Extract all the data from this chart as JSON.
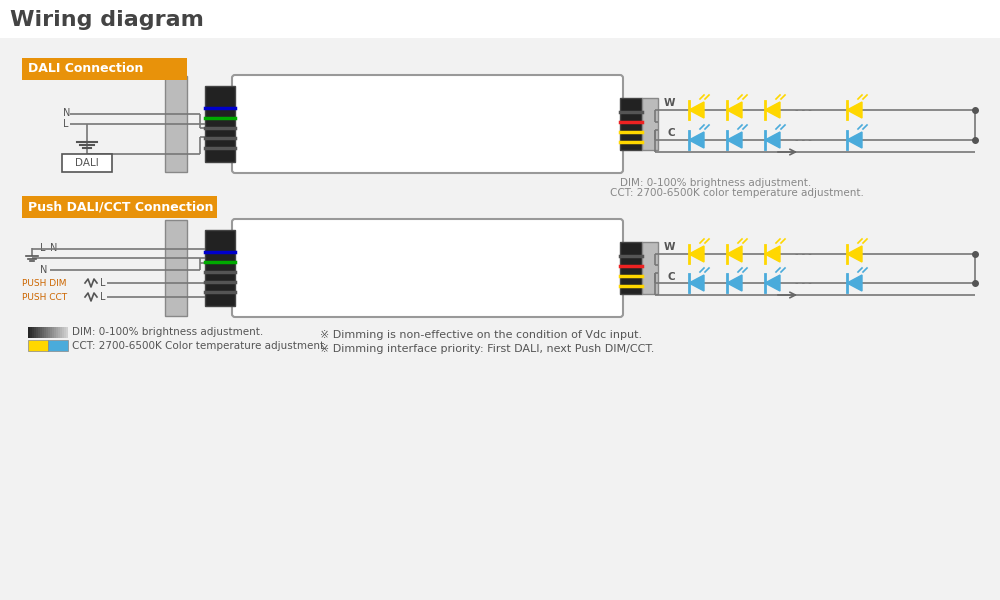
{
  "title": "Wiring diagram",
  "bg_color": "#f0f0f0",
  "white_bg": "#ffffff",
  "orange_label_color": "#E8920A",
  "yellow_led": "#FFD700",
  "blue_led": "#4AABDB",
  "dark_gray": "#555555",
  "light_gray": "#aaaaaa",
  "section1_label": "DALI Connection",
  "section2_label": "Push DALI/CCT Connection",
  "dim_note1": "DIM: 0-100% brightness adjustment.",
  "dim_note2": "CCT: 2700-6500K color temperature adjustment.",
  "legend_dim": "DIM: 0-100% brightness adjustment.",
  "legend_cct": "CCT: 2700-6500K Color temperature adjustment.",
  "note1": "※ Dimming is non-effective on the condition of Vdc input.",
  "note2": "※ Dimming interface priority: First DALI, next Push DIM/CCT.",
  "push_dim_color": "#cc6600",
  "wire_colors_left": [
    "#555555",
    "#555555",
    "#555555",
    "#00aa00",
    "#0000cc"
  ],
  "wire_colors_right": [
    "#FFD700",
    "#FFD700",
    "#ee2222",
    "#555555"
  ]
}
